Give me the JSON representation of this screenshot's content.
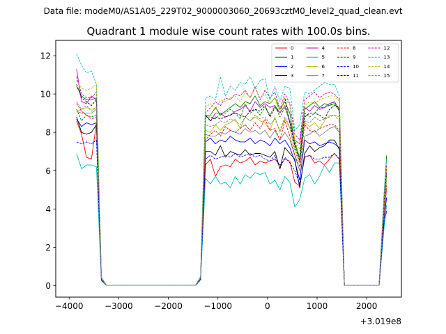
{
  "figure": {
    "suptitle": "Data file: modeM0/AS1A05_229T02_9000003060_20693cztM0_level2_quad_clean.evt",
    "title": "Quadrant 1 module wise count rates with 100.0s bins.",
    "x_offset_label": "+3.019e8"
  },
  "chart_data": {
    "type": "line",
    "title": "Quadrant 1 module wise count rates with 100.0s bins.",
    "xlabel": "",
    "ylabel": "",
    "x_offset": 301900000,
    "xlim": [
      -4270,
      2700
    ],
    "ylim": [
      -0.6,
      12.8
    ],
    "xticks": [
      -4000,
      -3000,
      -2000,
      -1000,
      0,
      1000,
      2000
    ],
    "xtick_labels": [
      "−4000",
      "−3000",
      "−2000",
      "−1000",
      "0",
      "1000",
      "2000"
    ],
    "yticks": [
      0,
      2,
      4,
      6,
      8,
      10,
      12
    ],
    "ytick_labels": [
      "0",
      "2",
      "4",
      "6",
      "8",
      "10",
      "12"
    ],
    "legend_position": "top-right",
    "x": [
      -3850,
      -3750,
      -3650,
      -3550,
      -3450,
      -3350,
      -3250,
      -1450,
      -1350,
      -1250,
      -1150,
      -1050,
      -950,
      -850,
      -750,
      -650,
      -550,
      -450,
      -350,
      -250,
      -150,
      -50,
      50,
      150,
      250,
      350,
      450,
      550,
      650,
      750,
      850,
      950,
      1050,
      1150,
      1250,
      1350,
      1450,
      1550,
      2250,
      2350,
      2400
    ],
    "series": [
      {
        "name": "0",
        "color": "#ff0000",
        "dash": "solid",
        "values": [
          8.6,
          7.9,
          6.7,
          6.6,
          8.5,
          0.25,
          0.02,
          0.02,
          0.3,
          6.3,
          6.6,
          5.7,
          6.2,
          6.3,
          6.2,
          6.6,
          6.4,
          6.5,
          6.7,
          6.3,
          6.5,
          6.4,
          6.5,
          6.6,
          6.3,
          6.6,
          6.5,
          5.4,
          5.2,
          6.7,
          6.8,
          6.4,
          6.5,
          6.3,
          6.6,
          6.9,
          6.6,
          0.02,
          0.02,
          3.9,
          5.0
        ]
      },
      {
        "name": "1",
        "color": "#008000",
        "dash": "solid",
        "values": [
          10.4,
          9.9,
          9.7,
          9.7,
          9.8,
          0.35,
          0.02,
          0.02,
          0.4,
          8.9,
          8.9,
          9.3,
          8.9,
          9.1,
          9.3,
          9.5,
          9.3,
          9.6,
          9.5,
          9.9,
          9.4,
          9.6,
          9.5,
          9.8,
          9.2,
          9.6,
          9.0,
          7.4,
          6.7,
          9.2,
          9.4,
          9.6,
          9.3,
          9.5,
          9.4,
          9.5,
          9.1,
          0.02,
          0.02,
          4.5,
          6.8
        ]
      },
      {
        "name": "2",
        "color": "#0000ff",
        "dash": "solid",
        "values": [
          8.7,
          8.3,
          8.5,
          8.4,
          8.5,
          0.3,
          0.02,
          0.02,
          0.35,
          7.5,
          7.7,
          7.4,
          7.6,
          7.5,
          7.8,
          7.6,
          7.5,
          7.5,
          7.7,
          7.4,
          7.6,
          7.5,
          7.3,
          7.7,
          7.4,
          7.6,
          7.2,
          6.5,
          5.5,
          7.6,
          7.4,
          7.5,
          7.3,
          7.4,
          7.5,
          7.4,
          7.2,
          0.02,
          0.02,
          3.2,
          3.9
        ]
      },
      {
        "name": "3",
        "color": "#000000",
        "dash": "solid",
        "values": [
          8.8,
          8.0,
          7.9,
          8.0,
          8.4,
          0.3,
          0.02,
          0.02,
          0.35,
          7.0,
          7.0,
          6.8,
          7.3,
          6.7,
          7.0,
          6.9,
          6.8,
          7.1,
          6.8,
          6.9,
          6.9,
          6.8,
          6.7,
          7.0,
          6.1,
          7.2,
          6.9,
          6.6,
          5.1,
          6.9,
          7.3,
          7.0,
          7.2,
          7.3,
          7.6,
          7.6,
          7.1,
          0.02,
          0.02,
          3.5,
          4.6
        ]
      },
      {
        "name": "4",
        "color": "#bf00bf",
        "dash": "solid",
        "values": [
          11.3,
          9.6,
          9.5,
          9.9,
          9.7,
          0.4,
          0.02,
          0.02,
          0.4,
          8.9,
          8.6,
          9.0,
          9.0,
          8.8,
          8.9,
          9.1,
          9.2,
          9.4,
          9.1,
          9.6,
          9.3,
          9.5,
          9.3,
          9.4,
          9.0,
          9.4,
          8.5,
          7.6,
          7.4,
          9.3,
          9.1,
          9.4,
          9.2,
          9.3,
          9.5,
          9.6,
          9.2,
          0.02,
          0.02,
          4.3,
          5.9
        ]
      },
      {
        "name": "5",
        "color": "#00bfbf",
        "dash": "solid",
        "values": [
          6.9,
          6.1,
          6.3,
          6.3,
          6.2,
          0.25,
          0.02,
          0.02,
          0.3,
          5.6,
          5.3,
          5.7,
          5.3,
          5.4,
          5.1,
          5.7,
          5.3,
          5.8,
          5.6,
          5.9,
          5.8,
          5.9,
          5.3,
          5.5,
          5.0,
          5.7,
          5.4,
          4.1,
          4.5,
          5.6,
          5.8,
          5.3,
          5.7,
          6.3,
          5.9,
          6.4,
          6.4,
          0.02,
          0.02,
          3.0,
          4.2
        ]
      },
      {
        "name": "6",
        "color": "#bfbf00",
        "dash": "solid",
        "values": [
          9.1,
          9.2,
          9.3,
          9.2,
          9.3,
          0.35,
          0.02,
          0.02,
          0.4,
          8.1,
          8.0,
          8.4,
          8.1,
          8.4,
          8.5,
          8.7,
          8.2,
          8.8,
          8.6,
          8.8,
          8.6,
          8.5,
          8.1,
          8.8,
          8.0,
          8.7,
          8.2,
          7.2,
          6.5,
          8.5,
          8.3,
          8.5,
          8.2,
          8.6,
          8.9,
          8.9,
          8.8,
          0.02,
          0.02,
          4.1,
          5.5
        ]
      },
      {
        "name": "7",
        "color": "#808080",
        "dash": "solid",
        "values": [
          9.1,
          9.0,
          9.0,
          9.0,
          9.2,
          0.35,
          0.02,
          0.02,
          0.4,
          7.9,
          7.8,
          7.8,
          8.0,
          7.9,
          8.1,
          8.0,
          7.9,
          8.2,
          8.0,
          8.1,
          7.9,
          8.1,
          7.7,
          8.1,
          7.6,
          8.0,
          7.6,
          6.8,
          6.0,
          7.8,
          7.9,
          8.1,
          7.8,
          8.0,
          8.2,
          8.3,
          8.0,
          0.02,
          0.02,
          3.8,
          5.1
        ]
      },
      {
        "name": "8",
        "color": "#ff0000",
        "dash": "dashed",
        "values": [
          9.5,
          9.1,
          8.9,
          8.7,
          8.8,
          0.3,
          0.02,
          0.02,
          0.35,
          7.6,
          7.9,
          8.1,
          7.8,
          8.3,
          8.1,
          8.0,
          8.2,
          8.4,
          8.1,
          8.5,
          8.2,
          8.7,
          8.1,
          8.2,
          7.6,
          8.6,
          7.8,
          6.8,
          6.2,
          8.4,
          8.1,
          8.0,
          8.2,
          8.3,
          8.4,
          8.4,
          8.1,
          0.02,
          0.02,
          3.9,
          5.3
        ]
      },
      {
        "name": "9",
        "color": "#008000",
        "dash": "dashed",
        "values": [
          9.2,
          8.6,
          8.9,
          8.8,
          8.9,
          0.35,
          0.02,
          0.02,
          0.4,
          8.8,
          8.8,
          8.7,
          9.0,
          9.0,
          9.2,
          9.0,
          8.7,
          9.5,
          9.0,
          9.2,
          8.9,
          9.3,
          8.9,
          9.4,
          8.8,
          9.3,
          8.6,
          7.6,
          6.5,
          9.0,
          8.8,
          9.0,
          9.3,
          9.3,
          9.4,
          9.6,
          9.1,
          0.02,
          0.02,
          4.3,
          5.8
        ]
      },
      {
        "name": "10",
        "color": "#0000ff",
        "dash": "dashed",
        "values": [
          7.5,
          7.4,
          7.5,
          7.4,
          7.6,
          0.3,
          0.02,
          0.02,
          0.3,
          6.6,
          6.8,
          6.6,
          6.7,
          6.8,
          6.7,
          6.9,
          6.7,
          6.8,
          6.9,
          6.7,
          6.8,
          6.6,
          6.5,
          6.8,
          6.1,
          6.7,
          6.4,
          6.0,
          5.3,
          6.7,
          6.8,
          6.6,
          6.6,
          6.7,
          6.7,
          6.9,
          6.6,
          0.02,
          0.02,
          3.4,
          4.6
        ]
      },
      {
        "name": "11",
        "color": "#000000",
        "dash": "dashed",
        "values": [
          10.5,
          9.8,
          9.6,
          9.4,
          9.7,
          0.4,
          0.02,
          0.02,
          0.4,
          8.9,
          8.6,
          8.8,
          8.7,
          8.8,
          8.9,
          9.0,
          8.9,
          8.8,
          9.1,
          9.2,
          9.1,
          9.4,
          8.8,
          9.3,
          9.0,
          9.8,
          8.5,
          7.3,
          6.5,
          8.8,
          9.0,
          9.0,
          8.9,
          8.7,
          9.2,
          9.4,
          9.3,
          0.02,
          0.02,
          4.4,
          6.1
        ]
      },
      {
        "name": "12",
        "color": "#bf00bf",
        "dash": "dashed",
        "values": [
          10.9,
          10.0,
          9.8,
          9.8,
          10.1,
          0.4,
          0.02,
          0.02,
          0.45,
          9.0,
          9.3,
          9.6,
          9.4,
          9.8,
          9.7,
          10.0,
          9.9,
          10.2,
          9.8,
          10.4,
          9.7,
          10.2,
          9.8,
          10.1,
          9.2,
          10.0,
          9.5,
          7.9,
          7.6,
          9.7,
          9.9,
          10.1,
          9.8,
          10.0,
          10.1,
          10.0,
          9.7,
          0.02,
          0.02,
          4.6,
          6.3
        ]
      },
      {
        "name": "13",
        "color": "#00bfbf",
        "dash": "dashed",
        "values": [
          12.1,
          11.5,
          11.1,
          11.2,
          10.5,
          0.45,
          0.02,
          0.02,
          0.5,
          9.8,
          9.9,
          9.7,
          10.9,
          9.9,
          10.4,
          10.2,
          10.6,
          10.5,
          10.9,
          10.3,
          10.7,
          10.8,
          9.7,
          10.4,
          9.6,
          10.4,
          10.3,
          8.1,
          8.4,
          10.1,
          10.0,
          10.2,
          10.4,
          10.6,
          10.5,
          10.5,
          9.9,
          0.02,
          0.02,
          4.9,
          6.6
        ]
      },
      {
        "name": "14",
        "color": "#bfbf00",
        "dash": "dashed",
        "values": [
          10.7,
          10.3,
          10.2,
          10.3,
          10.5,
          0.4,
          0.02,
          0.02,
          0.45,
          9.3,
          9.5,
          9.2,
          9.7,
          9.6,
          9.8,
          9.9,
          9.6,
          10.1,
          9.8,
          10.3,
          9.8,
          10.0,
          9.5,
          9.8,
          9.0,
          9.8,
          9.4,
          7.6,
          7.1,
          9.4,
          9.6,
          9.5,
          9.7,
          9.8,
          9.9,
          9.9,
          9.6,
          0.02,
          0.02,
          4.5,
          6.2
        ]
      },
      {
        "name": "15",
        "color": "#808080",
        "dash": "dashed",
        "values": [
          9.6,
          9.2,
          9.4,
          9.1,
          9.3,
          0.35,
          0.02,
          0.02,
          0.4,
          8.4,
          8.3,
          8.4,
          8.6,
          8.5,
          8.7,
          8.6,
          8.4,
          8.8,
          8.6,
          8.9,
          8.7,
          8.8,
          8.4,
          8.7,
          8.1,
          8.8,
          8.3,
          7.0,
          6.4,
          8.6,
          8.5,
          8.8,
          8.6,
          8.7,
          8.8,
          8.9,
          8.6,
          0.02,
          0.02,
          4.1,
          5.6
        ]
      }
    ]
  }
}
